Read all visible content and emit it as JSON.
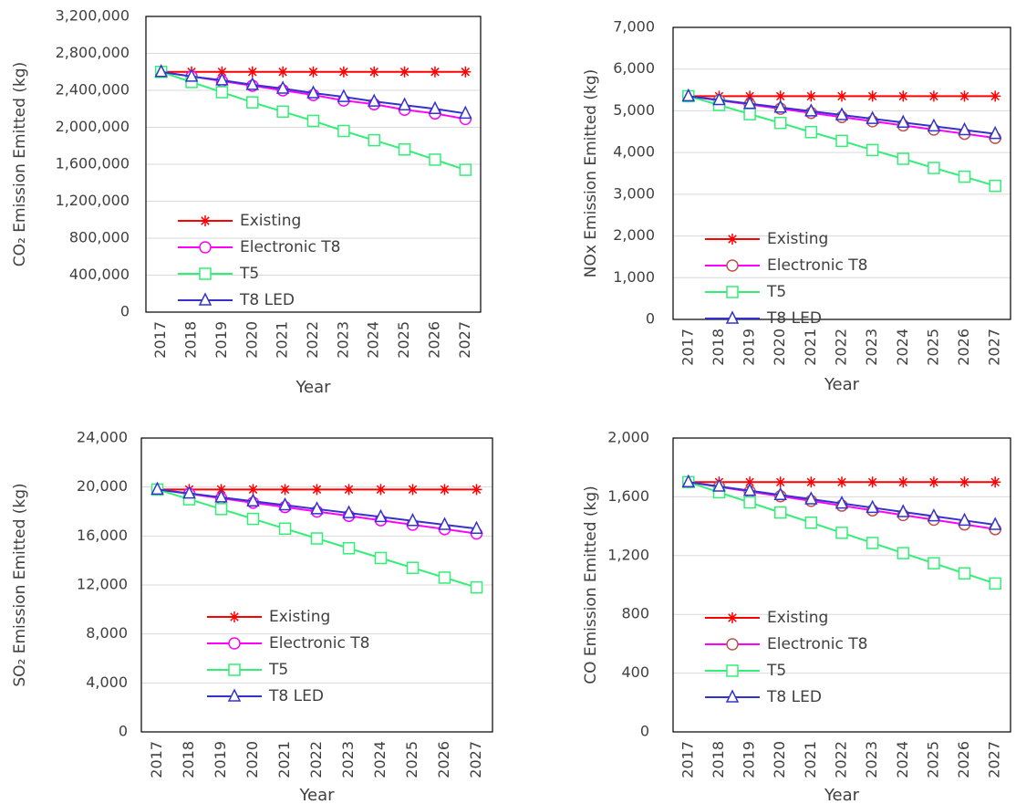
{
  "chart_data": [
    {
      "type": "line",
      "ylabel": "CO₂  Emission Emitted  (kg)",
      "xlabel": "Year",
      "categories": [
        "2017",
        "2018",
        "2019",
        "2020",
        "2021",
        "2022",
        "2023",
        "2024",
        "2025",
        "2026",
        "2027"
      ],
      "ylim": [
        0,
        3200000
      ],
      "yticks": [
        0,
        {
          "value": 400000,
          "label": "400,000"
        },
        {
          "value": 800000,
          "label": "800,000"
        },
        {
          "value": 1200000,
          "label": "1,200,000"
        },
        {
          "value": 1600000,
          "label": "1,600,000"
        },
        {
          "value": 2000000,
          "label": "2,000,000"
        },
        {
          "value": 2400000,
          "label": "2,400,000"
        },
        {
          "value": 2800000,
          "label": "2,800,000"
        },
        {
          "value": 3200000,
          "label": "3,200,000"
        }
      ],
      "grid": true,
      "series": [
        {
          "name": "Existing",
          "color": "#ff0000",
          "marker": "star",
          "marker_color": "#ff0000",
          "values": [
            2600000,
            2600000,
            2600000,
            2600000,
            2600000,
            2600000,
            2600000,
            2600000,
            2600000,
            2600000,
            2600000
          ]
        },
        {
          "name": "Electronic T8",
          "color": "#ff00ff",
          "marker": "circle",
          "marker_color": "#ff00ff",
          "values": [
            2600000,
            2550000,
            2500000,
            2450000,
            2400000,
            2350000,
            2290000,
            2250000,
            2190000,
            2150000,
            2090000
          ]
        },
        {
          "name": "T5",
          "color": "#33ee77",
          "marker": "square",
          "marker_color": "#33ee77",
          "values": [
            2600000,
            2490000,
            2380000,
            2270000,
            2170000,
            2070000,
            1960000,
            1860000,
            1760000,
            1650000,
            1540000
          ]
        },
        {
          "name": "T8 LED",
          "color": "#3333cc",
          "marker": "triangle",
          "marker_color": "#3333cc",
          "values": [
            2600000,
            2550000,
            2510000,
            2460000,
            2420000,
            2370000,
            2330000,
            2280000,
            2240000,
            2200000,
            2150000
          ]
        }
      ]
    },
    {
      "type": "line",
      "ylabel": "NOx  Emission Emitted (kg)",
      "xlabel": "Year",
      "categories": [
        "2017",
        "2018",
        "2019",
        "2020",
        "2021",
        "2022",
        "2023",
        "2024",
        "2025",
        "2026",
        "2027"
      ],
      "ylim": [
        0,
        7000
      ],
      "yticks": [
        0,
        {
          "value": 1000,
          "label": "1,000"
        },
        {
          "value": 2000,
          "label": "2,000"
        },
        {
          "value": 3000,
          "label": "3,000"
        },
        {
          "value": 4000,
          "label": "4,000"
        },
        {
          "value": 5000,
          "label": "5,000"
        },
        {
          "value": 6000,
          "label": "6,000"
        },
        {
          "value": 7000,
          "label": "7,000"
        }
      ],
      "grid": true,
      "series": [
        {
          "name": "Existing",
          "color": "#ff0000",
          "marker": "star",
          "marker_color": "#ff0000",
          "values": [
            5350,
            5350,
            5350,
            5350,
            5350,
            5350,
            5350,
            5350,
            5350,
            5350,
            5350
          ]
        },
        {
          "name": "Electronic T8",
          "color": "#ff00ff",
          "marker": "circle",
          "marker_color": "#c0504d",
          "values": [
            5350,
            5250,
            5150,
            5050,
            4950,
            4850,
            4750,
            4650,
            4550,
            4450,
            4350
          ]
        },
        {
          "name": "T5",
          "color": "#33ee77",
          "marker": "square",
          "marker_color": "#33ee77",
          "values": [
            5350,
            5140,
            4920,
            4710,
            4490,
            4280,
            4060,
            3850,
            3630,
            3420,
            3200
          ]
        },
        {
          "name": "T8 LED",
          "color": "#3333cc",
          "marker": "triangle",
          "marker_color": "#3333cc",
          "values": [
            5350,
            5260,
            5170,
            5080,
            4990,
            4900,
            4810,
            4720,
            4630,
            4540,
            4450
          ]
        }
      ]
    },
    {
      "type": "line",
      "ylabel": "SO₂  Emission Emitted (kg)",
      "xlabel": "Year",
      "categories": [
        "2017",
        "2018",
        "2019",
        "2020",
        "2021",
        "2022",
        "2023",
        "2024",
        "2025",
        "2026",
        "2027"
      ],
      "ylim": [
        0,
        24000
      ],
      "yticks": [
        0,
        {
          "value": 4000,
          "label": "4,000"
        },
        {
          "value": 8000,
          "label": "8,000"
        },
        {
          "value": 12000,
          "label": "12,000"
        },
        {
          "value": 16000,
          "label": "16,000"
        },
        {
          "value": 20000,
          "label": "20,000"
        },
        {
          "value": 24000,
          "label": "24,000"
        }
      ],
      "grid": true,
      "series": [
        {
          "name": "Existing",
          "color": "#ff0000",
          "marker": "star",
          "marker_color": "#ff0000",
          "values": [
            19800,
            19800,
            19800,
            19800,
            19800,
            19800,
            19800,
            19800,
            19800,
            19800,
            19800
          ]
        },
        {
          "name": "Electronic T8",
          "color": "#ff00ff",
          "marker": "circle",
          "marker_color": "#ff00ff",
          "values": [
            19800,
            19440,
            19080,
            18720,
            18360,
            18000,
            17640,
            17280,
            16920,
            16560,
            16200
          ]
        },
        {
          "name": "T5",
          "color": "#33ee77",
          "marker": "square",
          "marker_color": "#33ee77",
          "values": [
            19800,
            19000,
            18200,
            17400,
            16600,
            15800,
            15000,
            14200,
            13400,
            12600,
            11800
          ]
        },
        {
          "name": "T8 LED",
          "color": "#3333cc",
          "marker": "triangle",
          "marker_color": "#3333cc",
          "values": [
            19800,
            19480,
            19160,
            18840,
            18520,
            18200,
            17880,
            17560,
            17240,
            16920,
            16600
          ]
        }
      ]
    },
    {
      "type": "line",
      "ylabel": "CO Emission Emitted (kg)",
      "xlabel": "Year",
      "categories": [
        "2017",
        "2018",
        "2019",
        "2020",
        "2021",
        "2022",
        "2023",
        "2024",
        "2025",
        "2026",
        "2027"
      ],
      "ylim": [
        0,
        2000
      ],
      "yticks": [
        0,
        400,
        800,
        {
          "value": 1200,
          "label": "1,200"
        },
        {
          "value": 1600,
          "label": "1,600"
        },
        {
          "value": 2000,
          "label": "2,000"
        }
      ],
      "grid": true,
      "series": [
        {
          "name": "Existing",
          "color": "#ff0000",
          "marker": "star",
          "marker_color": "#ff0000",
          "values": [
            1700,
            1700,
            1700,
            1700,
            1700,
            1700,
            1700,
            1700,
            1700,
            1700,
            1700
          ]
        },
        {
          "name": "Electronic T8",
          "color": "#ff00ff",
          "marker": "circle",
          "marker_color": "#c0504d",
          "values": [
            1700,
            1668,
            1636,
            1604,
            1572,
            1540,
            1508,
            1476,
            1444,
            1412,
            1380
          ]
        },
        {
          "name": "T5",
          "color": "#33ee77",
          "marker": "square",
          "marker_color": "#33ee77",
          "values": [
            1700,
            1631,
            1562,
            1493,
            1424,
            1355,
            1286,
            1217,
            1148,
            1079,
            1010
          ]
        },
        {
          "name": "T8 LED",
          "color": "#3333cc",
          "marker": "triangle",
          "marker_color": "#3333cc",
          "values": [
            1700,
            1671,
            1642,
            1613,
            1584,
            1555,
            1526,
            1497,
            1468,
            1439,
            1410
          ]
        }
      ]
    }
  ]
}
